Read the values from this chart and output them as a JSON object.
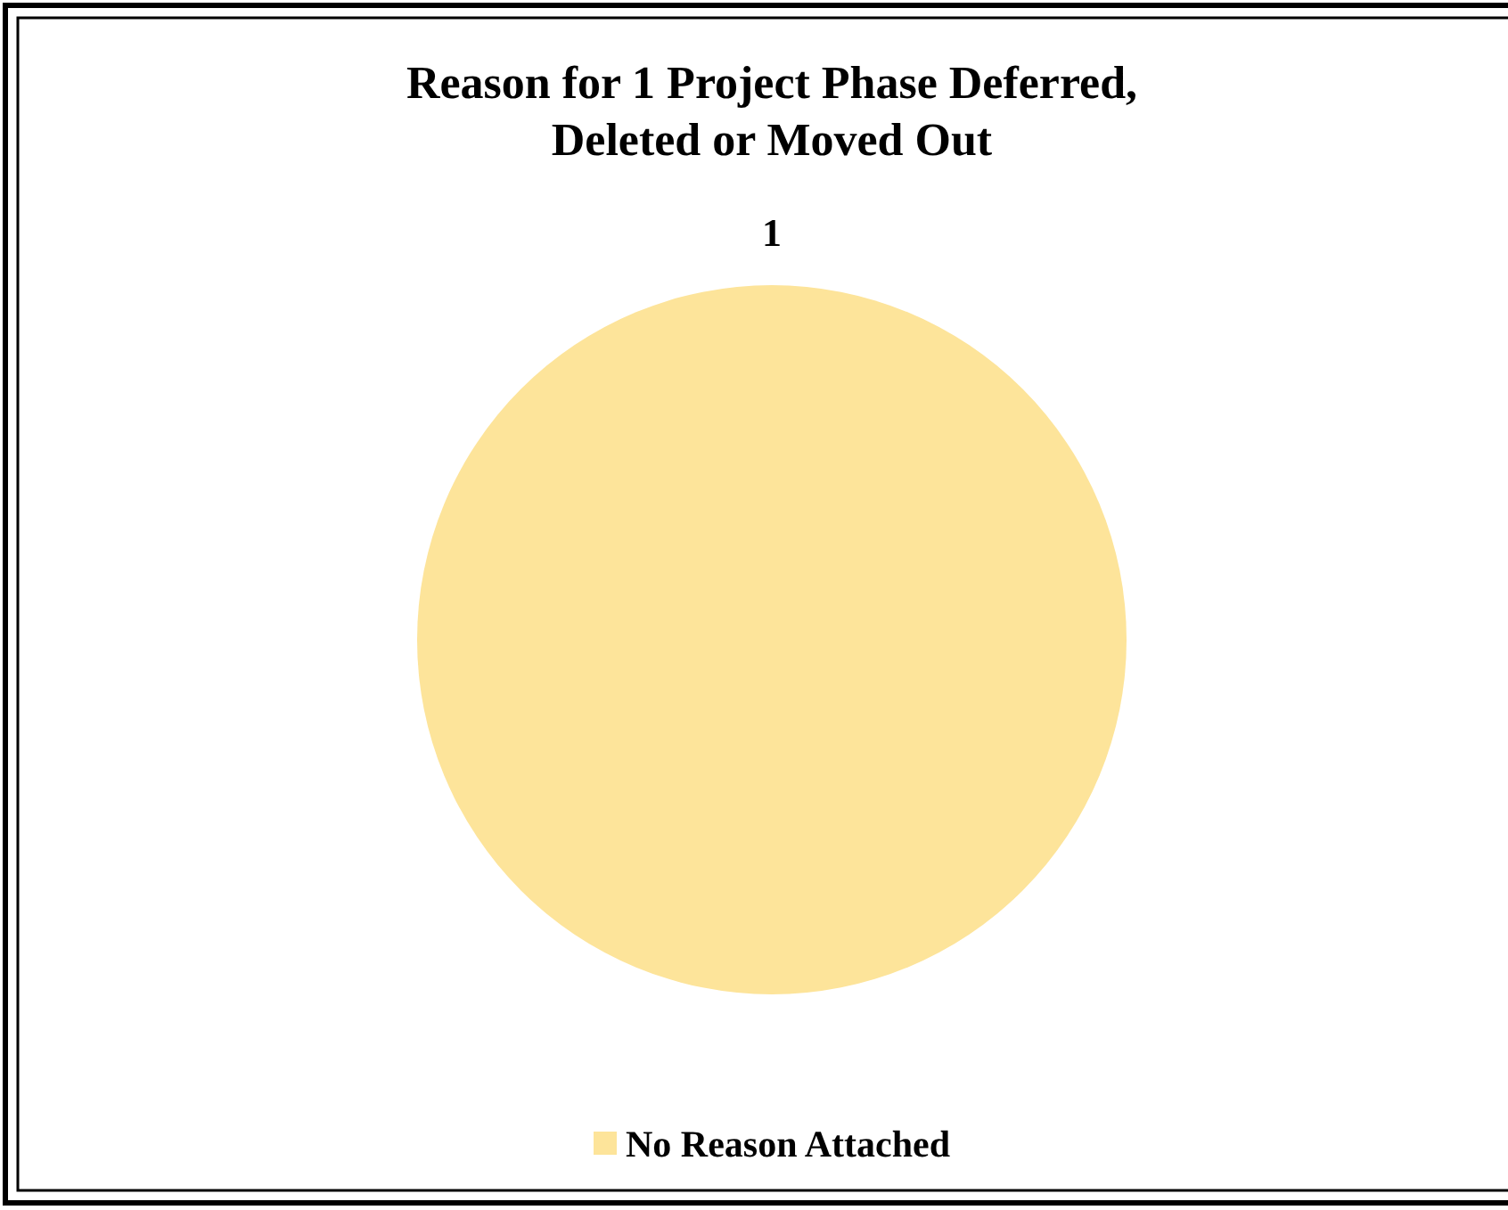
{
  "chart_data": {
    "type": "pie",
    "title": "Reason for 1 Project Phase Deferred, Deleted or Moved Out",
    "categories": [
      "No Reason Attached"
    ],
    "values": [
      1
    ],
    "colors": [
      "#fde49a"
    ],
    "data_labels": true,
    "legend": "bottom"
  }
}
